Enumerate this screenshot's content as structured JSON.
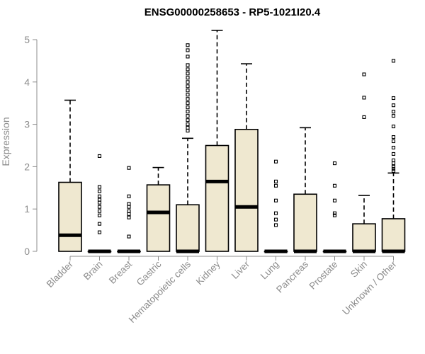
{
  "chart_data": {
    "type": "boxplot",
    "title": "ENSG00000258653 - RP5-1021I20.4",
    "ylabel": "Expression",
    "xlabel": "",
    "ylim": [
      0,
      5.2
    ],
    "yticks": [
      0,
      1,
      2,
      3,
      4,
      5
    ],
    "box_color": "#efe8d0",
    "categories": [
      "Bladder",
      "Brain",
      "Breast",
      "Gastric",
      "Hematopoietic cells",
      "Kidney",
      "Liver",
      "Lung",
      "Pancreas",
      "Prostate",
      "Skin",
      "Unknown / Other"
    ],
    "boxes": [
      {
        "q1": 0.0,
        "median": 0.38,
        "q3": 1.63,
        "whisker_low": 0.0,
        "whisker_high": 3.57,
        "outliers": []
      },
      {
        "q1": 0.0,
        "median": 0.0,
        "q3": 0.0,
        "whisker_low": 0.0,
        "whisker_high": 0.0,
        "outliers": [
          0.45,
          0.65,
          0.85,
          0.95,
          1.05,
          1.15,
          1.22,
          1.3,
          1.42,
          1.52,
          2.25
        ]
      },
      {
        "q1": 0.0,
        "median": 0.0,
        "q3": 0.0,
        "whisker_low": 0.0,
        "whisker_high": 0.0,
        "outliers": [
          0.35,
          0.8,
          0.88,
          0.95,
          1.05,
          1.12,
          1.3,
          1.97
        ]
      },
      {
        "q1": 0.0,
        "median": 0.92,
        "q3": 1.57,
        "whisker_low": 0.0,
        "whisker_high": 1.98,
        "outliers": []
      },
      {
        "q1": 0.0,
        "median": 0.0,
        "q3": 1.1,
        "whisker_low": 0.0,
        "whisker_high": 2.67,
        "outliers": [
          2.85,
          2.92,
          3.0,
          3.1,
          3.2,
          3.3,
          3.4,
          3.5,
          3.6,
          3.7,
          3.8,
          3.9,
          4.0,
          4.1,
          4.2,
          4.3,
          4.4,
          4.6,
          4.75,
          4.87
        ]
      },
      {
        "q1": 0.0,
        "median": 1.65,
        "q3": 2.5,
        "whisker_low": 0.0,
        "whisker_high": 5.22,
        "outliers": []
      },
      {
        "q1": 0.0,
        "median": 1.05,
        "q3": 2.88,
        "whisker_low": 0.0,
        "whisker_high": 4.43,
        "outliers": []
      },
      {
        "q1": 0.0,
        "median": 0.0,
        "q3": 0.0,
        "whisker_low": 0.0,
        "whisker_high": 0.0,
        "outliers": [
          0.62,
          0.75,
          0.9,
          1.2,
          1.55,
          1.65,
          2.12
        ]
      },
      {
        "q1": 0.0,
        "median": 0.0,
        "q3": 1.35,
        "whisker_low": 0.0,
        "whisker_high": 2.92,
        "outliers": []
      },
      {
        "q1": 0.0,
        "median": 0.0,
        "q3": 0.0,
        "whisker_low": 0.0,
        "whisker_high": 0.0,
        "outliers": [
          0.85,
          0.9,
          1.2,
          1.55,
          2.08
        ]
      },
      {
        "q1": 0.0,
        "median": 0.0,
        "q3": 0.65,
        "whisker_low": 0.0,
        "whisker_high": 1.32,
        "outliers": [
          3.17,
          3.63,
          4.18
        ]
      },
      {
        "q1": 0.0,
        "median": 0.0,
        "q3": 0.77,
        "whisker_low": 0.0,
        "whisker_high": 1.85,
        "outliers": [
          1.9,
          1.95,
          2.0,
          2.08,
          2.15,
          2.3,
          2.45,
          2.6,
          2.7,
          2.95,
          3.2,
          3.3,
          3.45,
          3.62,
          4.5
        ]
      }
    ]
  }
}
